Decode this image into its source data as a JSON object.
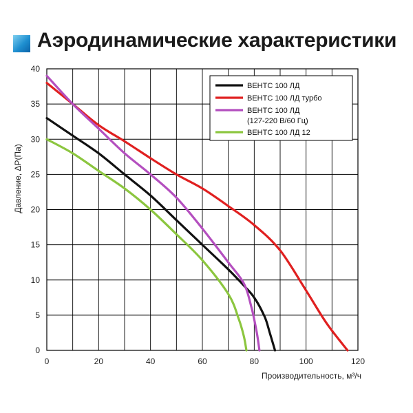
{
  "title": "Аэродинамические характеристики",
  "chart_data": {
    "type": "line",
    "xlabel": "Производительность, м³/ч",
    "ylabel": "Давление, ΔP(Па)",
    "xlim": [
      0,
      120
    ],
    "ylim": [
      0,
      40
    ],
    "xticks": [
      "0",
      "20",
      "40",
      "60",
      "80",
      "100",
      "120"
    ],
    "yticks": [
      "0",
      "5",
      "10",
      "15",
      "20",
      "25",
      "30",
      "35",
      "40"
    ],
    "grid": true,
    "legend_position": "top-right",
    "series": [
      {
        "name": "ВЕНТС 100 ЛД",
        "color": "#111111",
        "points": [
          [
            0,
            33
          ],
          [
            10,
            30.5
          ],
          [
            20,
            28
          ],
          [
            30,
            25
          ],
          [
            40,
            22
          ],
          [
            50,
            18.5
          ],
          [
            60,
            15
          ],
          [
            70,
            11.5
          ],
          [
            76,
            9.2
          ],
          [
            80,
            7.5
          ],
          [
            84,
            4.8
          ],
          [
            86,
            2.5
          ],
          [
            88,
            0
          ]
        ]
      },
      {
        "name": "ВЕНТС 100 ЛД турбо",
        "color": "#e02020",
        "points": [
          [
            0,
            38
          ],
          [
            10,
            35
          ],
          [
            20,
            32
          ],
          [
            30,
            29.7
          ],
          [
            40,
            27.3
          ],
          [
            50,
            25
          ],
          [
            60,
            23
          ],
          [
            70,
            20.5
          ],
          [
            80,
            17.8
          ],
          [
            90,
            14.2
          ],
          [
            100,
            8.5
          ],
          [
            108,
            3.8
          ],
          [
            116,
            0
          ]
        ]
      },
      {
        "name": "ВЕНТС 100 ЛД",
        "name_line2": "(127-220 В/60 Гц)",
        "color": "#b44fbf",
        "points": [
          [
            0,
            39
          ],
          [
            10,
            35
          ],
          [
            20,
            31.5
          ],
          [
            30,
            28
          ],
          [
            40,
            25
          ],
          [
            50,
            21.7
          ],
          [
            60,
            17.3
          ],
          [
            70,
            12.5
          ],
          [
            76,
            9.5
          ],
          [
            79,
            6
          ],
          [
            81,
            2.5
          ],
          [
            82,
            0
          ]
        ]
      },
      {
        "name": "ВЕНТС 100 ЛД 12",
        "color": "#8cc63f",
        "points": [
          [
            0,
            30
          ],
          [
            10,
            28
          ],
          [
            20,
            25.5
          ],
          [
            30,
            23
          ],
          [
            40,
            20
          ],
          [
            50,
            16.5
          ],
          [
            60,
            12.8
          ],
          [
            70,
            8
          ],
          [
            74,
            4.5
          ],
          [
            76,
            2
          ],
          [
            77,
            0
          ]
        ]
      }
    ]
  }
}
